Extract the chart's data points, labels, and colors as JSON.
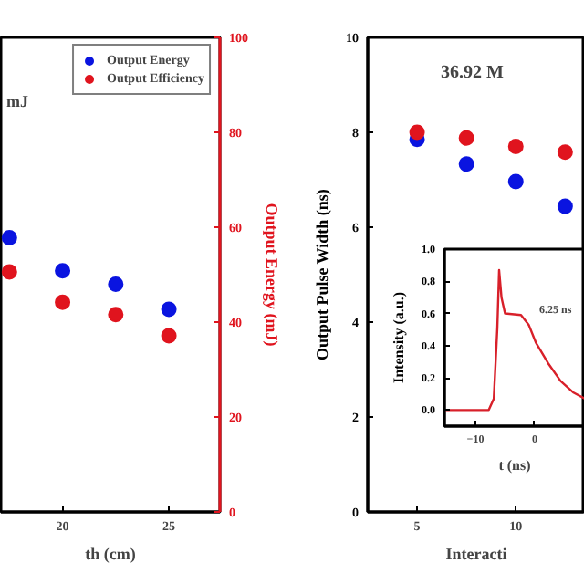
{
  "chart_data": [
    {
      "type": "scatter",
      "x": [
        17.5,
        20,
        22.5,
        25
      ],
      "series": [
        {
          "name": "Output Energy",
          "color": "#0a14e0",
          "values": [
            57.8,
            50.8,
            48.0,
            42.7
          ]
        },
        {
          "name": "Output Efficiency",
          "color": "#e0141e",
          "values": [
            50.6,
            44.2,
            41.6,
            37.1
          ]
        }
      ],
      "xlim": [
        17.1,
        27.4
      ],
      "xticks": [
        20,
        25
      ],
      "ylim": [
        0,
        100
      ],
      "yticks": [
        0,
        20,
        40,
        60,
        80,
        100
      ],
      "xlabel": "th (cm)",
      "ylabel": "Output Energy (mJ)",
      "legend": "top right",
      "marker": "circle",
      "annotations": [
        "mJ"
      ]
    },
    {
      "type": "scatter",
      "x": [
        5,
        7.5,
        10,
        12.5
      ],
      "series": [
        {
          "color": "#0a14e0",
          "values": [
            7.85,
            7.33,
            6.96,
            6.44
          ]
        },
        {
          "color": "#e0141e",
          "values": [
            8.0,
            7.88,
            7.7,
            7.58
          ]
        }
      ],
      "xlim": [
        2.5,
        13.5
      ],
      "xticks": [
        5,
        10
      ],
      "ylim": [
        0,
        10
      ],
      "yticks": [
        0,
        2,
        4,
        6,
        8,
        10
      ],
      "xlabel": "Interacti",
      "ylabel": "Output Pulse Width (ns)",
      "marker": "circle",
      "annotations": [
        "36.92 M"
      ]
    },
    {
      "type": "line",
      "x": [
        -15.25,
        -7.75,
        -6.9,
        -6.3,
        -6.0,
        -5.6,
        -5.0,
        -2.3,
        -1.0,
        0.2,
        2.3,
        4.4,
        6.5,
        8.5
      ],
      "series": [
        {
          "color": "#d8202a",
          "values": [
            0.0,
            0.0,
            0.07,
            0.51,
            0.87,
            0.7,
            0.6,
            0.59,
            0.53,
            0.42,
            0.29,
            0.18,
            0.11,
            0.07
          ]
        }
      ],
      "xlim": [
        -15.25,
        8.5
      ],
      "xticks": [
        -10,
        0
      ],
      "ylim": [
        -0.1,
        1.0
      ],
      "yticks": [
        {
          "value": 0,
          "label": "0.0"
        },
        {
          "value": 0.2,
          "label": "0.2"
        },
        {
          "value": 0.4,
          "label": "0.4"
        },
        {
          "value": 0.6,
          "label": "0.6"
        },
        {
          "value": 0.8,
          "label": "0.8"
        },
        {
          "value": 1.0,
          "label": "1.0"
        }
      ],
      "xlabel": "t (ns)",
      "ylabel": "Intensity (a.u.)",
      "annotations": [
        "6.25 ns"
      ]
    }
  ]
}
